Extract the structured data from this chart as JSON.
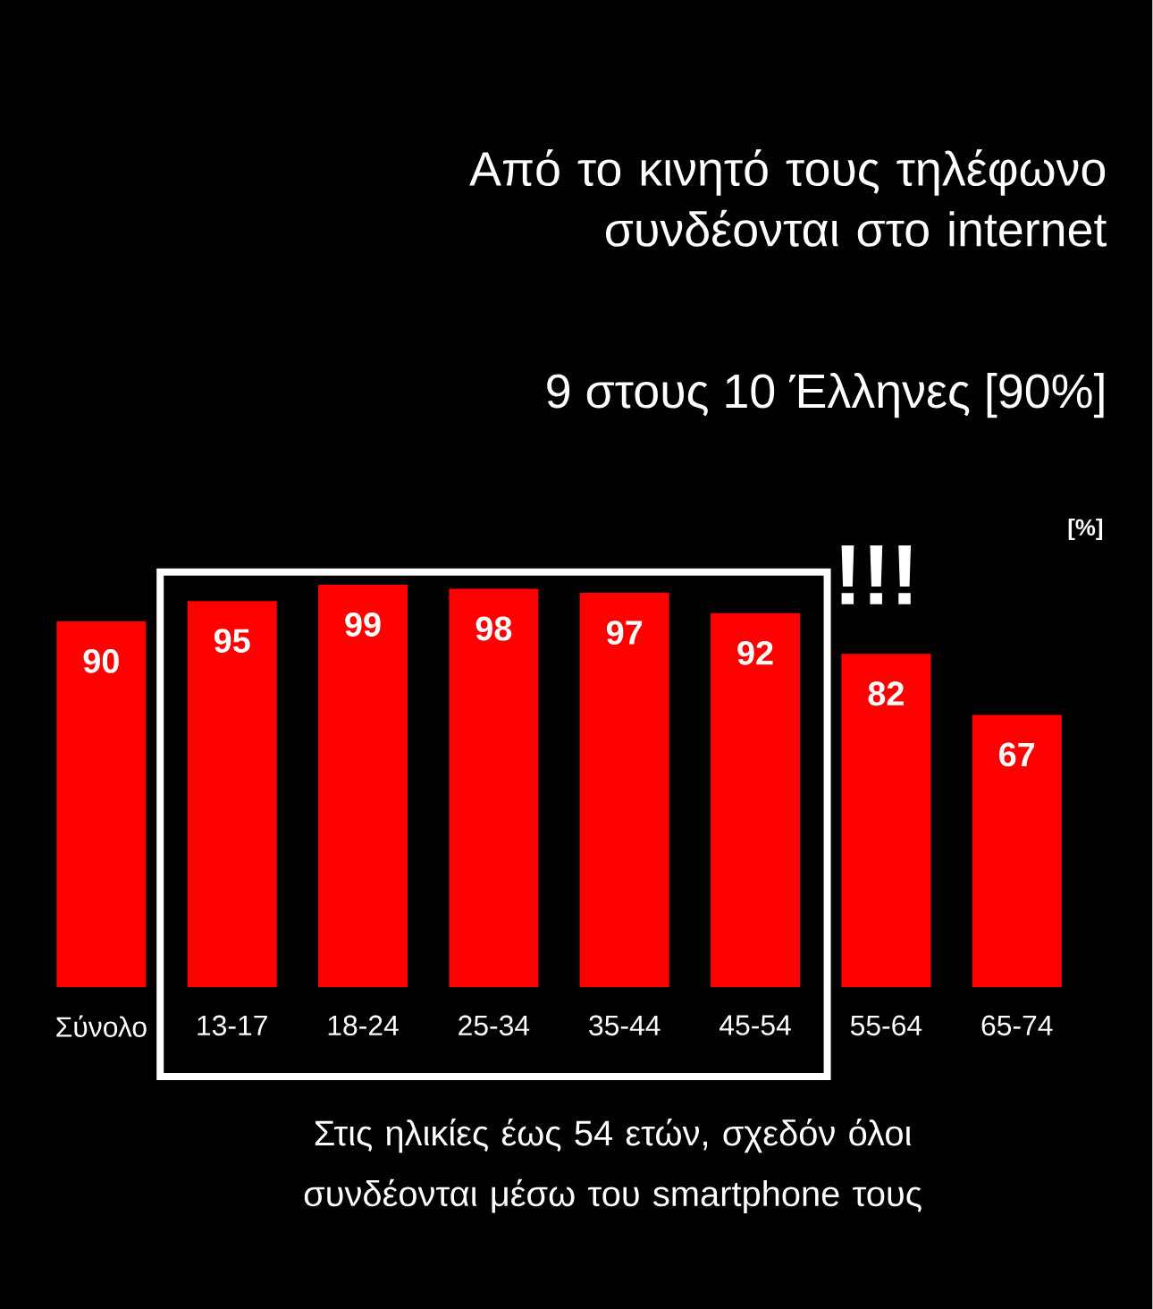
{
  "chart_data": {
    "type": "bar",
    "title": "Από το κινητό τους τηλέφωνο συνδέονται στο internet",
    "subtitle": "9 στους 10 Έλληνες [90%]",
    "ylabel": "[%]",
    "categories": [
      "Σύνολο",
      "13-17",
      "18-24",
      "25-34",
      "35-44",
      "45-54",
      "55-64",
      "65-74"
    ],
    "values": [
      90,
      95,
      99,
      98,
      97,
      92,
      82,
      67
    ],
    "color": "#ff0000",
    "data_labels": true,
    "annotations": [
      "Στις ηλικίες έως 54 ετών, σχεδόν όλοι συνδέονται μέσω του smartphone τους",
      "!!!"
    ]
  }
}
